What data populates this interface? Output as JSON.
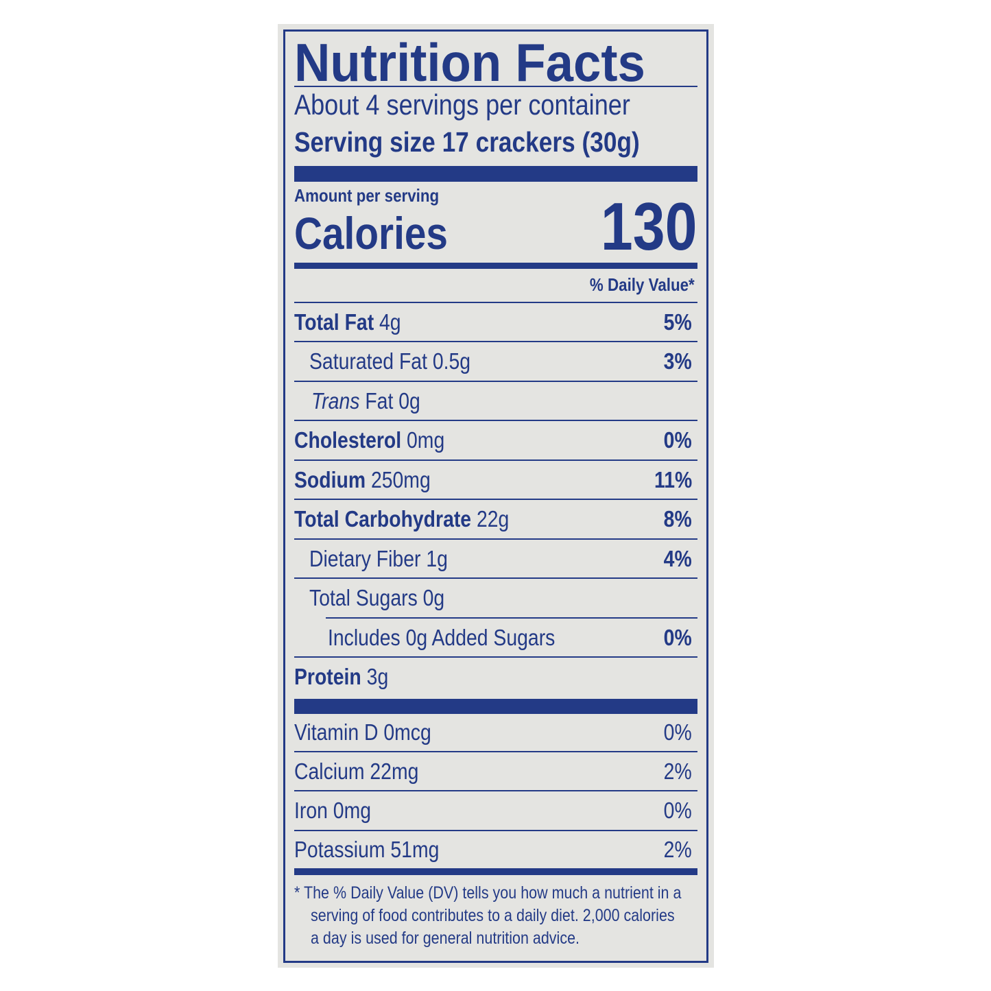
{
  "label": {
    "title": "Nutrition Facts",
    "servings_per_container": "About 4 servings per container",
    "serving_size": "Serving size 17 crackers (30g)",
    "amount_per_serving": "Amount per serving",
    "calories_label": "Calories",
    "calories_value": "130",
    "daily_value_header": "% Daily Value*",
    "nutrients": [
      {
        "name": "Total Fat",
        "amount": "4g",
        "dv": "5%"
      },
      {
        "name": "Saturated Fat",
        "amount": "0.5g",
        "dv": "3%"
      },
      {
        "prefix": "Trans",
        "name": "Fat",
        "amount": "0g",
        "dv": ""
      },
      {
        "name": "Cholesterol",
        "amount": "0mg",
        "dv": "0%"
      },
      {
        "name": "Sodium",
        "amount": "250mg",
        "dv": "11%"
      },
      {
        "name": "Total Carbohydrate",
        "amount": "22g",
        "dv": "8%"
      },
      {
        "name": "Dietary Fiber",
        "amount": "1g",
        "dv": "4%"
      },
      {
        "name": "Total Sugars",
        "amount": "0g",
        "dv": ""
      },
      {
        "name": "Includes 0g Added Sugars",
        "amount": "",
        "dv": "0%"
      },
      {
        "name": "Protein",
        "amount": "3g",
        "dv": ""
      }
    ],
    "vitamins": [
      {
        "name": "Vitamin D 0mcg",
        "dv": "0%"
      },
      {
        "name": "Calcium 22mg",
        "dv": "2%"
      },
      {
        "name": "Iron 0mg",
        "dv": "0%"
      },
      {
        "name": "Potassium 51mg",
        "dv": "2%"
      }
    ],
    "footnote": [
      "* The % Daily Value (DV) tells you how much a nutrient in a",
      "serving of food contributes to a daily diet. 2,000 calories",
      "a day is used for general nutrition advice."
    ],
    "colors": {
      "ink": "#233a86",
      "panel": "#e4e4e1"
    }
  }
}
